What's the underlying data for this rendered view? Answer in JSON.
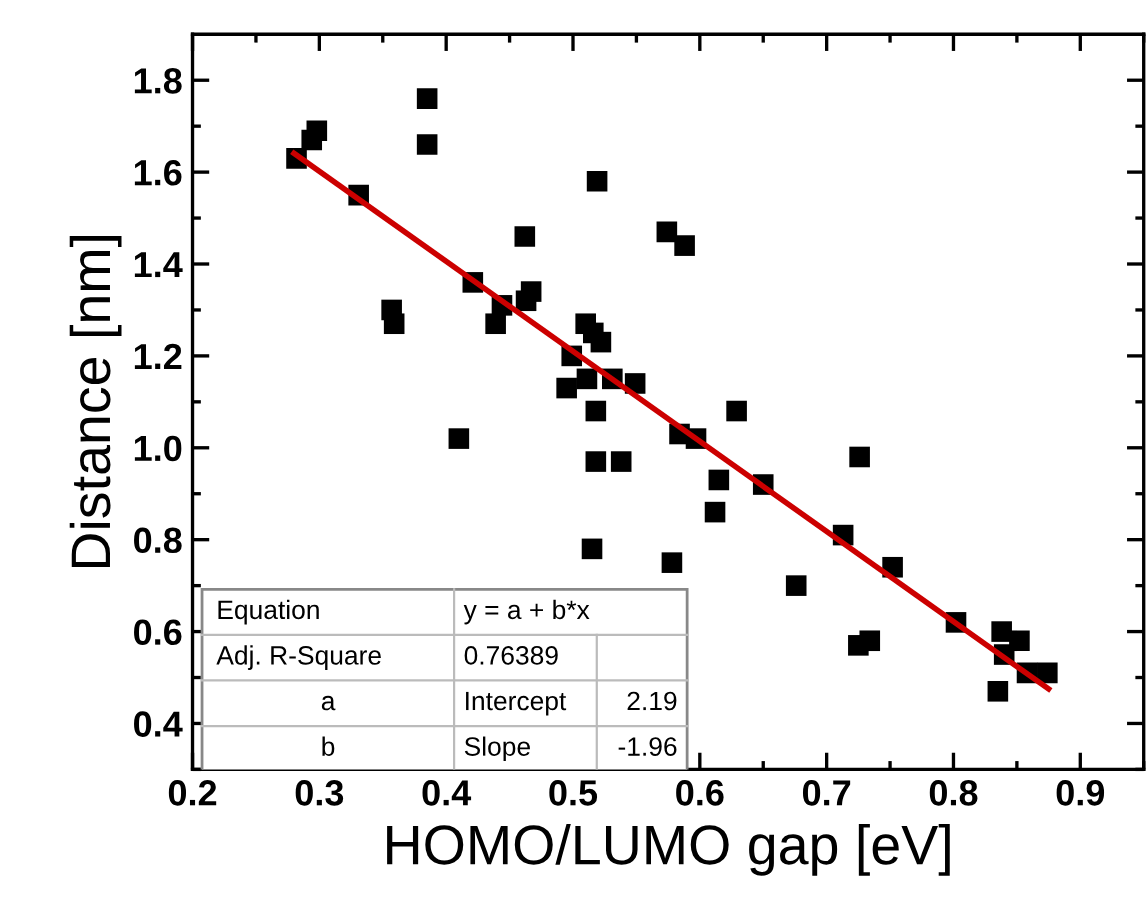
{
  "chart_data": {
    "type": "scatter",
    "xlabel": "HOMO/LUMO gap [eV]",
    "ylabel": "Distance [nm]",
    "xlim": [
      0.2,
      0.95
    ],
    "ylim": [
      0.3,
      1.9
    ],
    "xticks": [
      0.2,
      0.3,
      0.4,
      0.5,
      0.6,
      0.7,
      0.8,
      0.9
    ],
    "yticks": [
      0.4,
      0.6,
      0.8,
      {
        "value": 1.0,
        "label": "1.0"
      },
      1.2,
      1.4,
      1.6,
      1.8
    ],
    "grid": false,
    "legend": false,
    "series": [
      {
        "color": "#000000",
        "marker": "square",
        "x": [
          0.282,
          0.294,
          0.298,
          0.331,
          0.385,
          0.385,
          0.357,
          0.359,
          0.41,
          0.421,
          0.444,
          0.439,
          0.462,
          0.463,
          0.467,
          0.519,
          0.51,
          0.516,
          0.522,
          0.499,
          0.495,
          0.511,
          0.531,
          0.549,
          0.518,
          0.518,
          0.538,
          0.584,
          0.574,
          0.588,
          0.515,
          0.578,
          0.597,
          0.629,
          0.615,
          0.65,
          0.612,
          0.726,
          0.713,
          0.752,
          0.676,
          0.725,
          0.734,
          0.802,
          0.838,
          0.84,
          0.852,
          0.858,
          0.874,
          0.835
        ],
        "values": [
          1.63,
          1.67,
          1.69,
          1.55,
          1.76,
          1.66,
          1.3,
          1.27,
          1.02,
          1.36,
          1.31,
          1.27,
          1.46,
          1.32,
          1.34,
          1.58,
          1.27,
          1.25,
          1.23,
          1.2,
          1.13,
          1.15,
          1.15,
          1.14,
          1.08,
          0.97,
          0.97,
          1.03,
          1.47,
          1.44,
          0.78,
          0.75,
          1.02,
          1.08,
          0.93,
          0.92,
          0.86,
          0.98,
          0.81,
          0.74,
          0.7,
          0.57,
          0.58,
          0.62,
          0.6,
          0.55,
          0.58,
          0.51,
          0.51,
          0.47
        ]
      },
      {
        "type": "line",
        "color": "#cc0000",
        "line_style": "solid",
        "x": [
          0.28,
          0.875
        ],
        "values": [
          1.641,
          0.475
        ]
      }
    ],
    "annotations": [
      "Equation",
      "y = a + b*x",
      "Adj. R-Square",
      "0.76389",
      "a",
      "Intercept",
      "2.19",
      "b",
      "Slope",
      "-1.96"
    ]
  }
}
